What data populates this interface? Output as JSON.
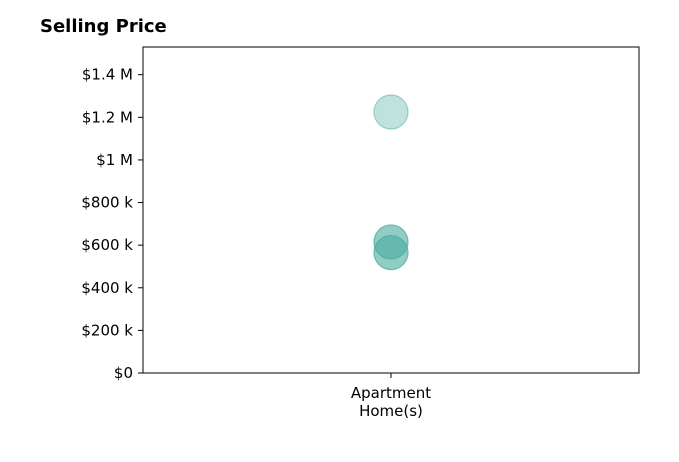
{
  "chart_data": {
    "type": "scatter",
    "title": "Selling Price",
    "xlabel": "",
    "ylabel": "",
    "categories": [
      "Apartment\nHome(s)"
    ],
    "ylim": [
      0,
      1530000
    ],
    "yticks": [
      0,
      200000,
      400000,
      600000,
      800000,
      1000000,
      1200000,
      1400000
    ],
    "ytick_labels": [
      "$0",
      "$200 k",
      "$400 k",
      "$600 k",
      "$800 k",
      "$1 M",
      "$1.2 M",
      "$1.4 M"
    ],
    "grid": false,
    "series": [
      {
        "category": "Apartment\nHome(s)",
        "values": [
          1225000,
          615000,
          565000
        ]
      }
    ],
    "marker_color": "#4aab9f",
    "marker_opacities": [
      0.35,
      0.6,
      0.6
    ]
  }
}
